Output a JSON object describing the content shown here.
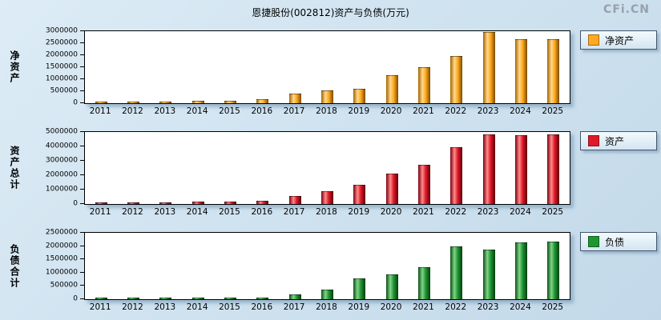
{
  "header": {
    "title": "恩捷股份(002812)资产与负债(万元)",
    "logo": "CFi.CN"
  },
  "chart_data": [
    {
      "type": "bar",
      "id": "net-assets",
      "ylabel": "净资产",
      "legend": "净资产",
      "legend_position": "right",
      "grid": false,
      "colors": {
        "main": "#FFAA1E",
        "light": "#FFD88C",
        "dark": "#A36300",
        "edge": "#7A4A00"
      },
      "ylim": [
        0,
        3000000
      ],
      "yticks": [
        0,
        500000,
        1000000,
        1500000,
        2000000,
        2500000,
        3000000
      ],
      "categories": [
        "2011",
        "2012",
        "2013",
        "2014",
        "2015",
        "2016",
        "2017",
        "2018",
        "2019",
        "2020",
        "2021",
        "2022",
        "2023",
        "2024",
        "2025"
      ],
      "values": [
        25000,
        28000,
        32000,
        70000,
        75000,
        120000,
        360000,
        500000,
        560000,
        1150000,
        1480000,
        1950000,
        2920000,
        2620000,
        2650000
      ]
    },
    {
      "type": "bar",
      "id": "total-assets",
      "ylabel": "资产总计",
      "legend": "资产",
      "legend_position": "right",
      "grid": false,
      "colors": {
        "main": "#E01828",
        "light": "#FF8A8A",
        "dark": "#7A0010",
        "edge": "#5C0008"
      },
      "ylim": [
        0,
        5000000
      ],
      "yticks": [
        0,
        1000000,
        2000000,
        3000000,
        4000000,
        5000000
      ],
      "categories": [
        "2011",
        "2012",
        "2013",
        "2014",
        "2015",
        "2016",
        "2017",
        "2018",
        "2019",
        "2020",
        "2021",
        "2022",
        "2023",
        "2024",
        "2025"
      ],
      "values": [
        60000,
        70000,
        80000,
        90000,
        95000,
        150000,
        500000,
        830000,
        1300000,
        2050000,
        2650000,
        3900000,
        4770000,
        4750000,
        4800000
      ]
    },
    {
      "type": "bar",
      "id": "total-liabilities",
      "ylabel": "负债合计",
      "legend": "负债",
      "legend_position": "right",
      "grid": false,
      "colors": {
        "main": "#1E9632",
        "light": "#82D388",
        "dark": "#0A4F16",
        "edge": "#073D10"
      },
      "ylim": [
        0,
        2500000
      ],
      "yticks": [
        0,
        500000,
        1000000,
        1500000,
        2000000,
        2500000
      ],
      "categories": [
        "2011",
        "2012",
        "2013",
        "2014",
        "2015",
        "2016",
        "2017",
        "2018",
        "2019",
        "2020",
        "2021",
        "2022",
        "2023",
        "2024",
        "2025"
      ],
      "values": [
        30000,
        35000,
        40000,
        25000,
        25000,
        25000,
        140000,
        330000,
        760000,
        900000,
        1180000,
        1950000,
        1850000,
        2100000,
        2150000
      ]
    }
  ]
}
